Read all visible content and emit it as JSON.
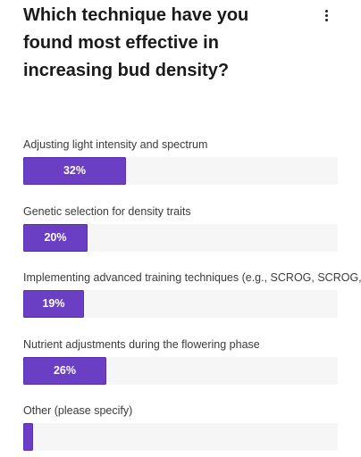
{
  "poll": {
    "question": "Which technique have you found most effective in increasing bud density?",
    "menu_icon": "vertical-ellipsis-icon",
    "accent_color": "#6b3fc4",
    "track_color": "#f6f6f7",
    "options": [
      {
        "label": "Adjusting light intensity and spectrum",
        "percent": 32,
        "percent_label": "32%"
      },
      {
        "label": "Genetic selection for density traits",
        "percent": 20,
        "percent_label": "20%"
      },
      {
        "label": "Implementing advanced training techniques (e.g., SCROG, SCROG, SC",
        "percent": 19,
        "percent_label": "19%"
      },
      {
        "label": "Nutrient adjustments during the flowering phase",
        "percent": 26,
        "percent_label": "26%"
      },
      {
        "label": "Other (please specify)",
        "percent": 3,
        "percent_label": ""
      }
    ]
  }
}
